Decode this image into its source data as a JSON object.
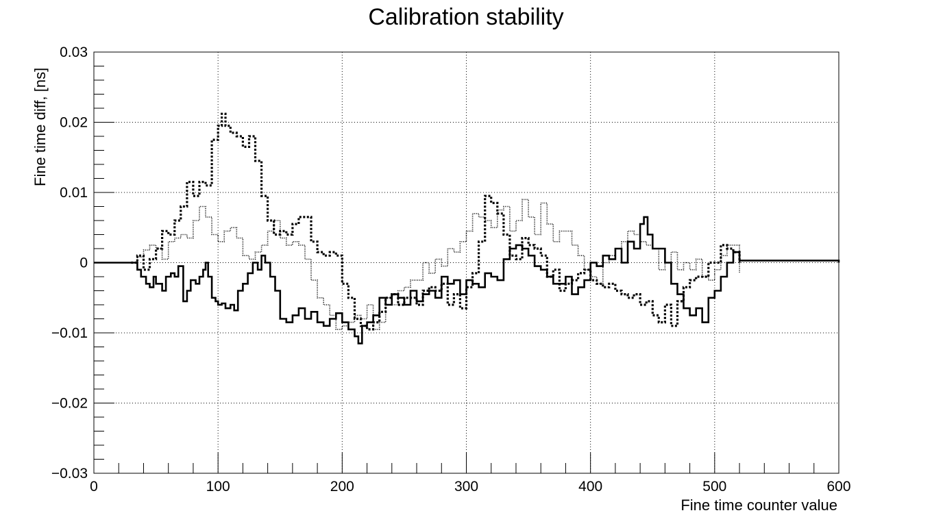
{
  "chart_data": {
    "type": "line",
    "title": "Calibration stability",
    "xlabel": "Fine time counter value",
    "ylabel": "Fine time diff, [ns]",
    "xlim": [
      0,
      600
    ],
    "ylim": [
      -0.03,
      0.03
    ],
    "grid": true,
    "x_ticks": [
      0,
      100,
      200,
      300,
      400,
      500,
      600
    ],
    "x_tick_labels": [
      "0",
      "100",
      "200",
      "300",
      "400",
      "500",
      "600"
    ],
    "y_ticks": [
      -0.03,
      -0.02,
      -0.01,
      0,
      0.01,
      0.02,
      0.03
    ],
    "y_tick_labels": [
      "−0.03",
      "−0.02",
      "−0.01",
      "0",
      "0.01",
      "0.02",
      "0.03"
    ],
    "series": [
      {
        "style": "solid",
        "x": [
          0,
          30,
          35,
          38,
          42,
          45,
          48,
          50,
          55,
          58,
          62,
          65,
          68,
          72,
          75,
          78,
          82,
          85,
          88,
          90,
          92,
          95,
          98,
          100,
          103,
          106,
          110,
          113,
          116,
          120,
          124,
          128,
          132,
          135,
          138,
          142,
          146,
          150,
          155,
          160,
          165,
          170,
          175,
          180,
          185,
          190,
          195,
          200,
          205,
          210,
          213,
          216,
          220,
          225,
          230,
          235,
          240,
          245,
          250,
          255,
          260,
          265,
          270,
          275,
          280,
          285,
          290,
          295,
          300,
          305,
          310,
          315,
          320,
          325,
          330,
          335,
          340,
          345,
          350,
          355,
          360,
          365,
          370,
          375,
          380,
          385,
          390,
          395,
          400,
          405,
          410,
          415,
          420,
          425,
          430,
          435,
          440,
          443,
          446,
          450,
          455,
          460,
          465,
          470,
          475,
          480,
          485,
          490,
          495,
          500,
          505,
          510,
          515,
          520,
          600
        ],
        "y": [
          0,
          0,
          -0.001,
          -0.002,
          -0.003,
          -0.0035,
          -0.002,
          -0.003,
          -0.004,
          -0.002,
          -0.0015,
          -0.002,
          -0.0005,
          -0.0055,
          -0.004,
          -0.0025,
          -0.003,
          -0.002,
          -0.001,
          0,
          -0.002,
          -0.005,
          -0.0055,
          -0.006,
          -0.0058,
          -0.0065,
          -0.006,
          -0.0068,
          -0.004,
          -0.003,
          -0.0015,
          0,
          -0.001,
          0.001,
          0,
          -0.002,
          -0.004,
          -0.008,
          -0.0085,
          -0.0075,
          -0.0065,
          -0.008,
          -0.007,
          -0.0085,
          -0.009,
          -0.008,
          -0.0072,
          -0.0085,
          -0.0095,
          -0.0105,
          -0.0115,
          -0.009,
          -0.0085,
          -0.0075,
          -0.005,
          -0.006,
          -0.0045,
          -0.005,
          -0.006,
          -0.004,
          -0.0055,
          -0.0045,
          -0.004,
          -0.005,
          -0.002,
          -0.003,
          -0.0025,
          -0.0045,
          -0.0025,
          -0.003,
          -0.0035,
          -0.0015,
          -0.002,
          -0.0025,
          0.0005,
          0.002,
          0.0025,
          0.002,
          0.001,
          -0.0005,
          -0.001,
          -0.002,
          -0.003,
          -0.003,
          -0.002,
          -0.0045,
          -0.0035,
          -0.0025,
          0,
          -0.0005,
          0.001,
          0.0005,
          0.002,
          0,
          0.003,
          0.002,
          0.0055,
          0.0065,
          0.004,
          0.002,
          0.002,
          0,
          -0.003,
          -0.0045,
          -0.0065,
          -0.0075,
          -0.0065,
          -0.0085,
          -0.005,
          -0.004,
          -0.002,
          0.0,
          0.0015,
          0.0003,
          0
        ]
      },
      {
        "style": "dashed",
        "x": [
          30,
          35,
          40,
          45,
          50,
          55,
          60,
          65,
          70,
          75,
          80,
          85,
          90,
          95,
          100,
          103,
          106,
          110,
          115,
          120,
          125,
          130,
          135,
          140,
          145,
          150,
          155,
          160,
          165,
          170,
          175,
          180,
          185,
          190,
          195,
          200,
          205,
          210,
          215,
          220,
          225,
          230,
          235,
          240,
          245,
          250,
          255,
          260,
          265,
          270,
          275,
          280,
          285,
          290,
          295,
          300,
          305,
          310,
          315,
          320,
          325,
          330,
          335,
          340,
          345,
          350,
          355,
          360,
          365,
          370,
          375,
          380,
          385,
          390,
          395,
          400,
          405,
          410,
          415,
          420,
          425,
          430,
          435,
          440,
          445,
          450,
          455,
          460,
          465,
          470,
          475,
          480,
          485,
          490,
          495,
          500,
          505,
          510,
          515,
          520
        ],
        "y": [
          0,
          0.001,
          -0.001,
          0.0005,
          0.002,
          0.0045,
          0.004,
          0.006,
          0.008,
          0.0115,
          0.0095,
          0.0115,
          0.011,
          0.0175,
          0.0195,
          0.0212,
          0.0195,
          0.0185,
          0.018,
          0.0165,
          0.018,
          0.0145,
          0.0095,
          0.006,
          0.004,
          0.0045,
          0.004,
          0.0055,
          0.0065,
          0.0065,
          0.003,
          0.0015,
          0.001,
          0.0015,
          0.001,
          -0.003,
          -0.005,
          -0.008,
          -0.009,
          -0.0095,
          -0.0085,
          -0.007,
          -0.005,
          -0.0045,
          -0.006,
          -0.005,
          -0.005,
          -0.006,
          -0.004,
          -0.0035,
          -0.004,
          -0.003,
          -0.006,
          -0.0045,
          -0.0065,
          -0.0035,
          -0.0015,
          0.003,
          0.0095,
          0.0085,
          0.007,
          0.004,
          0.001,
          0.0005,
          0.0035,
          0.0025,
          0.002,
          0.001,
          -0.002,
          -0.001,
          -0.004,
          -0.003,
          -0.0025,
          -0.0015,
          -0.001,
          -0.0025,
          -0.003,
          -0.0035,
          -0.003,
          -0.004,
          -0.0045,
          -0.005,
          -0.0045,
          -0.006,
          -0.0055,
          -0.0075,
          -0.0085,
          -0.006,
          -0.009,
          -0.0055,
          -0.0035,
          -0.0025,
          -0.002,
          -0.002,
          0,
          0,
          0.0025,
          0.002,
          0.0015,
          0
        ]
      },
      {
        "style": "dotted",
        "x": [
          30,
          35,
          40,
          45,
          50,
          55,
          60,
          65,
          70,
          75,
          80,
          85,
          90,
          95,
          100,
          105,
          110,
          115,
          120,
          125,
          130,
          135,
          140,
          145,
          150,
          155,
          160,
          165,
          170,
          175,
          180,
          185,
          190,
          195,
          200,
          205,
          210,
          215,
          220,
          225,
          230,
          235,
          240,
          245,
          250,
          255,
          260,
          265,
          270,
          275,
          280,
          285,
          290,
          295,
          300,
          305,
          310,
          315,
          320,
          325,
          330,
          335,
          340,
          345,
          350,
          355,
          360,
          365,
          370,
          375,
          380,
          385,
          390,
          395,
          400,
          405,
          410,
          415,
          420,
          425,
          430,
          435,
          440,
          445,
          450,
          455,
          460,
          465,
          470,
          475,
          480,
          485,
          490,
          495,
          500,
          505,
          510,
          515,
          520
        ],
        "y": [
          0,
          0.0008,
          0.0018,
          0.0025,
          0.002,
          0.0005,
          0.003,
          0.0035,
          0.004,
          0.0035,
          0.006,
          0.008,
          0.0065,
          0.004,
          0.003,
          0.0045,
          0.005,
          0.0035,
          0.001,
          0.0005,
          0.0015,
          0.0025,
          0.0045,
          0.006,
          0.0035,
          0.0025,
          0.003,
          0.0025,
          0.0005,
          -0.0025,
          -0.005,
          -0.006,
          -0.0075,
          -0.0095,
          -0.009,
          -0.0085,
          -0.0075,
          -0.008,
          -0.006,
          -0.0095,
          -0.0085,
          -0.005,
          -0.006,
          -0.004,
          -0.0035,
          -0.0025,
          -0.0025,
          0,
          -0.0015,
          0.0005,
          -0.0005,
          0.002,
          0.0015,
          0.003,
          0.0045,
          0.007,
          0.0065,
          0.006,
          0.005,
          0.0075,
          0.008,
          0.0045,
          0.006,
          0.009,
          0.0065,
          0.004,
          0.0085,
          0.0055,
          0.003,
          0.0045,
          0.0045,
          0.0025,
          0.001,
          -0.001,
          -0.002,
          -0.003,
          0,
          0.001,
          0.002,
          0.003,
          0.0045,
          0.004,
          0.003,
          0.0025,
          0.002,
          -0.001,
          0,
          0.0015,
          -0.001,
          0,
          -0.001,
          0.0005,
          -0.002,
          -0.0025,
          -0.001,
          0.001,
          0.0025,
          0.0025,
          -0.0015
        ]
      }
    ]
  }
}
